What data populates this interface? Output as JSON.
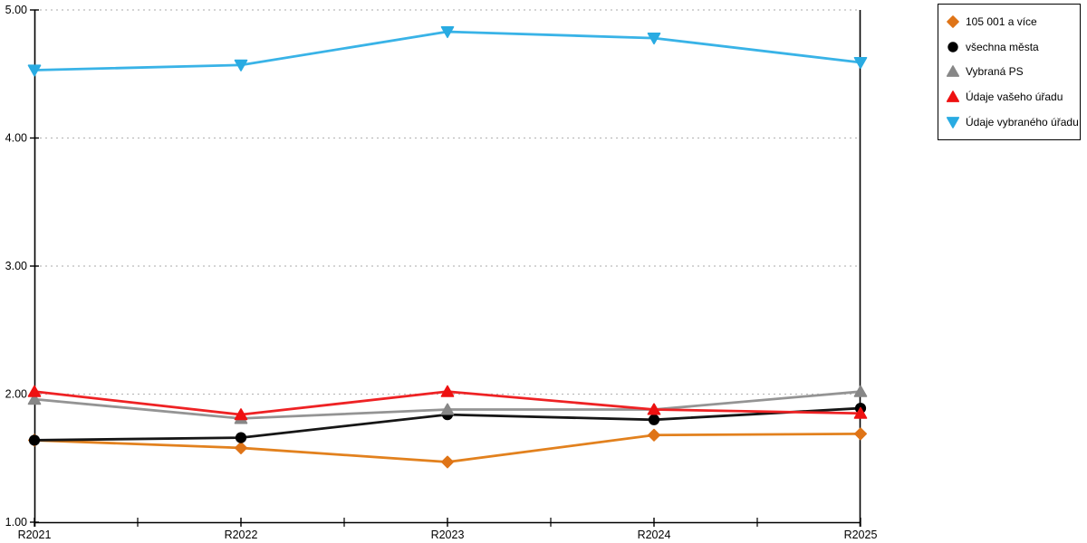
{
  "chart_data": {
    "type": "line",
    "title": "",
    "xlabel": "",
    "ylabel": "",
    "categories": [
      "R2021",
      "R2022",
      "R2023",
      "R2024",
      "R2025"
    ],
    "yticks": [
      "1.00",
      "2.00",
      "3.00",
      "4.00",
      "5.00"
    ],
    "ylim": [
      1,
      5
    ],
    "grid": "horizontal-dotted",
    "legend_position": "top-right",
    "axis_color": "#000000",
    "gridline_color": "#bbbbbb",
    "series": [
      {
        "name": "105 001 a více",
        "marker": "diamond",
        "color": "#df7417",
        "line_color": "#e2811e",
        "values": [
          1.64,
          1.58,
          1.47,
          1.68,
          1.69
        ]
      },
      {
        "name": "všechna města",
        "marker": "circle",
        "color": "#000000",
        "line_color": "#161616",
        "values": [
          1.64,
          1.66,
          1.84,
          1.8,
          1.89
        ]
      },
      {
        "name": "Vybraná PS",
        "marker": "triangle-up",
        "color": "#878787",
        "line_color": "#949494",
        "values": [
          1.96,
          1.81,
          1.88,
          1.88,
          2.02
        ]
      },
      {
        "name": "Údaje vašeho úřadu",
        "marker": "triangle-up",
        "color": "#ee1111",
        "line_color": "#ee2224",
        "values": [
          2.02,
          1.84,
          2.02,
          1.88,
          1.85
        ]
      },
      {
        "name": "Údaje vybraného úřadu",
        "marker": "triangle-down",
        "color": "#29abe2",
        "line_color": "#39b3e7",
        "values": [
          4.53,
          4.57,
          4.83,
          4.78,
          4.59
        ]
      }
    ]
  }
}
